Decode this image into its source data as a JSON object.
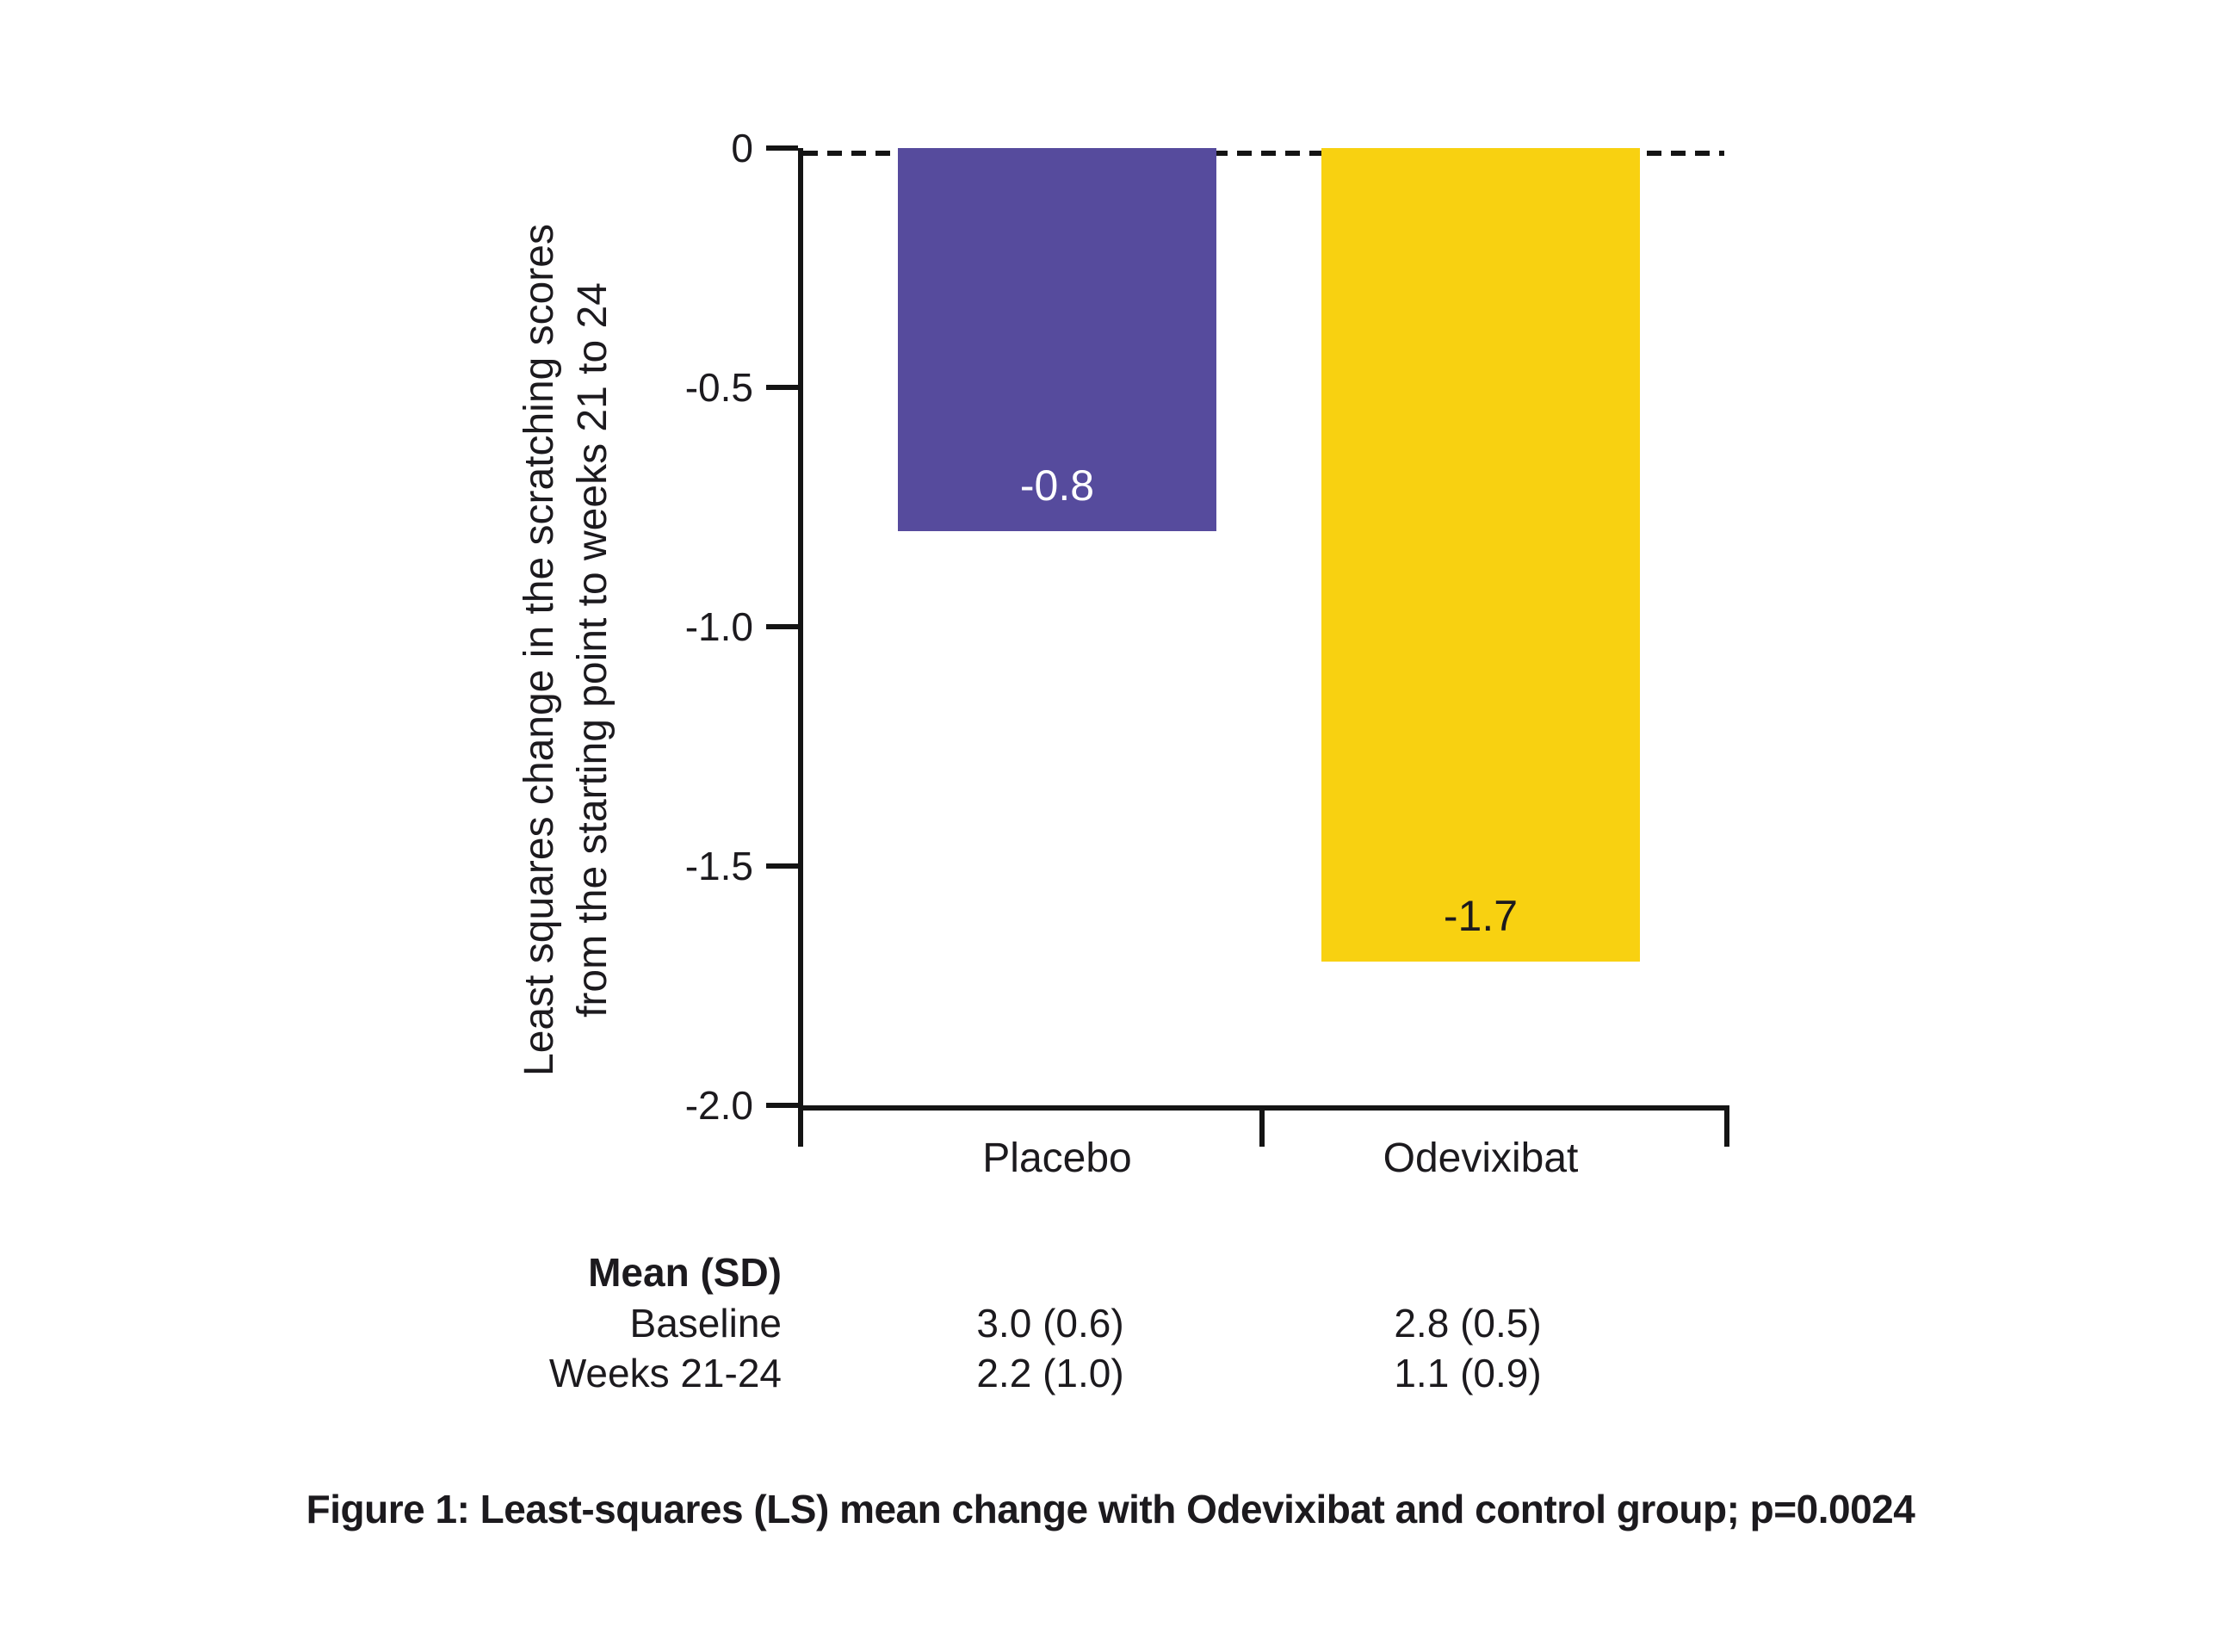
{
  "colors": {
    "placebo_bar": "#564B9D",
    "odevixibat_bar": "#F8D111",
    "axis": "#141414",
    "value_label_on_placebo": "#FFFFFF",
    "value_label_on_odevixibat": "#1C1A1E"
  },
  "chart_data": {
    "type": "bar",
    "title": "",
    "categories": [
      "Placebo",
      "Odevixibat"
    ],
    "values": [
      -0.8,
      -1.7
    ],
    "value_labels": [
      "-0.8",
      "-1.7"
    ],
    "bar_colors": [
      "#564B9D",
      "#F8D111"
    ],
    "ylabel_line1": "Least squares change in the scratching scores",
    "ylabel_line2": "from the starting point to weeks 21 to 24",
    "xlabel": "",
    "y_ticks": [
      "0",
      "-0.5",
      "-1.0",
      "-1.5",
      "-2.0"
    ],
    "ylim": [
      -2.0,
      0
    ],
    "zero_line_style": "dashed",
    "grid": false,
    "legend": false
  },
  "table": {
    "header": "Mean (SD)",
    "rows": [
      {
        "label": "Baseline",
        "placebo": "3.0 (0.6)",
        "odevixibat": "2.8 (0.5)"
      },
      {
        "label": "Weeks 21-24",
        "placebo": "2.2 (1.0)",
        "odevixibat": "1.1 (0.9)"
      }
    ]
  },
  "caption": "Figure 1: Least-squares (LS) mean change with Odevixibat and control group; p=0.0024"
}
